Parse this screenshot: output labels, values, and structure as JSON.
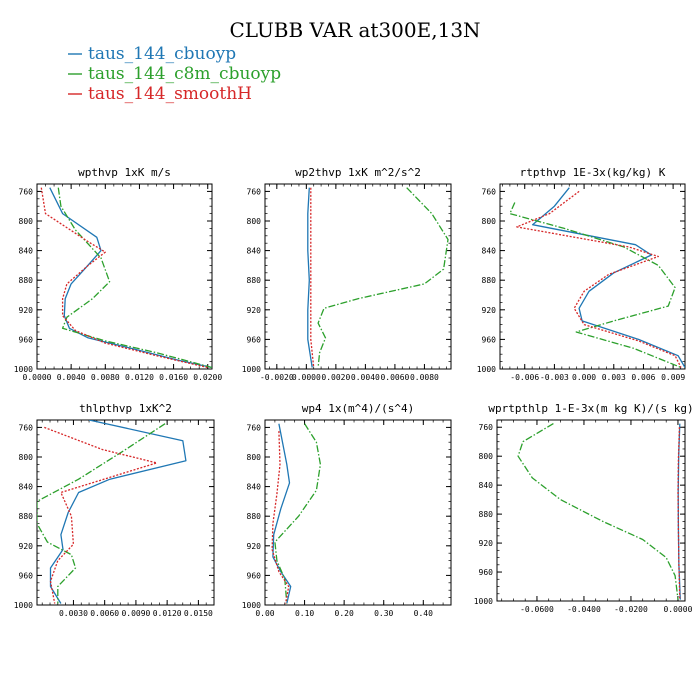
{
  "figure": {
    "title": "CLUBB VAR at300E,13N",
    "legend": [
      {
        "label": "taus_144_cbuoyp",
        "color": "#1f77b4",
        "dash": "solid"
      },
      {
        "label": "taus_144_c8m_cbuoyp",
        "color": "#2ca02c",
        "dash": "dashdot"
      },
      {
        "label": "taus_144_smoothH",
        "color": "#d62728",
        "dash": "dotted"
      }
    ]
  },
  "chart_data": [
    {
      "type": "line",
      "title": "wpthvp  1xK m/s",
      "ylim": [
        1000,
        750
      ],
      "yticks": [
        760,
        800,
        840,
        880,
        920,
        960,
        1000
      ],
      "xlim": [
        0.0,
        0.0205
      ],
      "xticks": [
        0.0,
        0.004,
        0.008,
        0.012,
        0.016,
        0.02
      ],
      "xticklabels": [
        "0.0000",
        "0.0040",
        "0.0080",
        "0.0120",
        "0.0160",
        "0.0200"
      ],
      "series": [
        {
          "name": "taus_144_cbuoyp",
          "points": [
            [
              0.0015,
              755
            ],
            [
              0.003,
              790
            ],
            [
              0.007,
              822
            ],
            [
              0.0075,
              840
            ],
            [
              0.0058,
              862
            ],
            [
              0.004,
              885
            ],
            [
              0.0033,
              905
            ],
            [
              0.0032,
              928
            ],
            [
              0.0038,
              945
            ],
            [
              0.006,
              958
            ],
            [
              0.011,
              972
            ],
            [
              0.0165,
              988
            ],
            [
              0.0205,
              998
            ]
          ]
        },
        {
          "name": "taus_144_c8m_cbuoyp",
          "points": [
            [
              0.0025,
              755
            ],
            [
              0.0028,
              780
            ],
            [
              0.0045,
              812
            ],
            [
              0.0075,
              850
            ],
            [
              0.0085,
              882
            ],
            [
              0.0065,
              905
            ],
            [
              0.0035,
              930
            ],
            [
              0.003,
              945
            ],
            [
              0.008,
              962
            ],
            [
              0.014,
              978
            ],
            [
              0.0205,
              998
            ]
          ]
        },
        {
          "name": "taus_144_smoothH",
          "points": [
            [
              0.0005,
              755
            ],
            [
              0.001,
              790
            ],
            [
              0.006,
              828
            ],
            [
              0.008,
              842
            ],
            [
              0.006,
              860
            ],
            [
              0.0035,
              885
            ],
            [
              0.003,
              905
            ],
            [
              0.003,
              928
            ],
            [
              0.0045,
              948
            ],
            [
              0.008,
              965
            ],
            [
              0.014,
              982
            ],
            [
              0.02,
              998
            ]
          ]
        }
      ]
    },
    {
      "type": "line",
      "title": "wp2thvp  1xK m^2/s^2",
      "ylim": [
        1000,
        750
      ],
      "yticks": [
        760,
        800,
        840,
        880,
        920,
        960,
        1000
      ],
      "xlim": [
        -0.0028,
        0.0098
      ],
      "xticks": [
        -0.002,
        0.0,
        0.002,
        0.004,
        0.006,
        0.008
      ],
      "xticklabels": [
        "-0.0020",
        "0.0000",
        "0.0020",
        "0.0040",
        "0.0060",
        "0.0080"
      ],
      "series": [
        {
          "name": "taus_144_cbuoyp",
          "points": [
            [
              0.0002,
              755
            ],
            [
              0.0001,
              790
            ],
            [
              0.0001,
              840
            ],
            [
              0.0002,
              880
            ],
            [
              0.0001,
              920
            ],
            [
              0.0001,
              960
            ],
            [
              0.0004,
              998
            ]
          ]
        },
        {
          "name": "taus_144_c8m_cbuoyp",
          "points": [
            [
              0.0068,
              755
            ],
            [
              0.0085,
              790
            ],
            [
              0.0096,
              825
            ],
            [
              0.0093,
              865
            ],
            [
              0.008,
              885
            ],
            [
              0.0035,
              905
            ],
            [
              0.0012,
              918
            ],
            [
              0.0008,
              938
            ],
            [
              0.0013,
              958
            ],
            [
              0.0009,
              978
            ],
            [
              0.0008,
              998
            ]
          ]
        },
        {
          "name": "taus_144_smoothH",
          "points": [
            [
              0.0003,
              755
            ],
            [
              0.0003,
              790
            ],
            [
              0.0003,
              840
            ],
            [
              0.0003,
              880
            ],
            [
              0.0003,
              920
            ],
            [
              0.0003,
              960
            ],
            [
              0.0005,
              998
            ]
          ]
        }
      ]
    },
    {
      "type": "line",
      "title": "rtpthvp  1E-3x(kg/kg) K",
      "ylim": [
        1000,
        750
      ],
      "yticks": [
        760,
        800,
        840,
        880,
        920,
        960,
        1000
      ],
      "xlim": [
        -0.0085,
        0.0102
      ],
      "xticks": [
        -0.006,
        -0.003,
        0.0,
        0.003,
        0.006,
        0.009
      ],
      "xticklabels": [
        "-0.006",
        "-0.003",
        "0.000",
        "0.003",
        "0.006",
        "0.009"
      ],
      "series": [
        {
          "name": "taus_144_cbuoyp",
          "points": [
            [
              -0.0015,
              755
            ],
            [
              -0.003,
              780
            ],
            [
              -0.0052,
              805
            ],
            [
              0.0052,
              832
            ],
            [
              0.0068,
              846
            ],
            [
              0.003,
              870
            ],
            [
              0.0005,
              895
            ],
            [
              -0.0005,
              918
            ],
            [
              -0.0002,
              935
            ],
            [
              0.0055,
              960
            ],
            [
              0.0095,
              982
            ],
            [
              0.0102,
              998
            ]
          ]
        },
        {
          "name": "taus_144_c8m_cbuoyp",
          "points": [
            [
              -0.007,
              775
            ],
            [
              -0.0075,
              790
            ],
            [
              -0.002,
              810
            ],
            [
              0.004,
              835
            ],
            [
              0.0075,
              860
            ],
            [
              0.0092,
              890
            ],
            [
              0.0085,
              915
            ],
            [
              0.003,
              935
            ],
            [
              -0.0008,
              950
            ],
            [
              0.005,
              972
            ],
            [
              0.0098,
              998
            ]
          ]
        },
        {
          "name": "taus_144_smoothH",
          "points": [
            [
              -0.0005,
              760
            ],
            [
              -0.0035,
              790
            ],
            [
              -0.0068,
              808
            ],
            [
              0.0045,
              835
            ],
            [
              0.0075,
              848
            ],
            [
              0.0025,
              872
            ],
            [
              0.0,
              895
            ],
            [
              -0.001,
              918
            ],
            [
              0.0,
              940
            ],
            [
              0.0055,
              962
            ],
            [
              0.0092,
              982
            ],
            [
              0.0098,
              998
            ]
          ]
        }
      ]
    },
    {
      "type": "line",
      "title": "thlpthvp  1xK^2",
      "ylim": [
        1000,
        750
      ],
      "yticks": [
        760,
        800,
        840,
        880,
        920,
        960,
        1000
      ],
      "xlim": [
        -0.0005,
        0.0165
      ],
      "xticks": [
        0.003,
        0.006,
        0.009,
        0.012,
        0.015
      ],
      "xticklabels": [
        "0.0030",
        "0.0060",
        "0.0090",
        "0.0120",
        "0.0150"
      ],
      "series": [
        {
          "name": "taus_144_cbuoyp",
          "points": [
            [
              0.0045,
              750
            ],
            [
              0.0135,
              778
            ],
            [
              0.0138,
              805
            ],
            [
              0.0065,
              830
            ],
            [
              0.0035,
              848
            ],
            [
              0.0025,
              875
            ],
            [
              0.0018,
              905
            ],
            [
              0.002,
              925
            ],
            [
              0.0008,
              950
            ],
            [
              0.0008,
              975
            ],
            [
              0.0018,
              998
            ]
          ]
        },
        {
          "name": "taus_144_c8m_cbuoyp",
          "points": [
            [
              0.0118,
              755
            ],
            [
              0.008,
              790
            ],
            [
              0.0035,
              830
            ],
            [
              -0.0005,
              860
            ],
            [
              -0.0005,
              890
            ],
            [
              0.0005,
              915
            ],
            [
              0.0028,
              932
            ],
            [
              0.0032,
              950
            ],
            [
              0.0015,
              975
            ],
            [
              0.0015,
              998
            ]
          ]
        },
        {
          "name": "taus_144_smoothH",
          "points": [
            [
              0.0002,
              760
            ],
            [
              0.0058,
              790
            ],
            [
              0.011,
              808
            ],
            [
              0.0018,
              848
            ],
            [
              0.0028,
              880
            ],
            [
              0.003,
              918
            ],
            [
              0.0015,
              940
            ],
            [
              0.0008,
              968
            ],
            [
              0.0012,
              998
            ]
          ]
        }
      ]
    },
    {
      "type": "line",
      "title": "wp4  1x(m^4)/(s^4)",
      "ylim": [
        1000,
        750
      ],
      "yticks": [
        760,
        800,
        840,
        880,
        920,
        960,
        1000
      ],
      "xlim": [
        0.0,
        0.47
      ],
      "xticks": [
        0.0,
        0.1,
        0.2,
        0.3,
        0.4
      ],
      "xticklabels": [
        "0.00",
        "0.10",
        "0.20",
        "0.30",
        "0.40"
      ],
      "series": [
        {
          "name": "taus_144_cbuoyp",
          "points": [
            [
              0.035,
              755
            ],
            [
              0.055,
              810
            ],
            [
              0.062,
              835
            ],
            [
              0.04,
              870
            ],
            [
              0.022,
              905
            ],
            [
              0.02,
              935
            ],
            [
              0.04,
              955
            ],
            [
              0.065,
              975
            ],
            [
              0.055,
              998
            ]
          ]
        },
        {
          "name": "taus_144_c8m_cbuoyp",
          "points": [
            [
              0.1,
              755
            ],
            [
              0.13,
              780
            ],
            [
              0.14,
              810
            ],
            [
              0.13,
              845
            ],
            [
              0.085,
              880
            ],
            [
              0.025,
              915
            ],
            [
              0.03,
              940
            ],
            [
              0.05,
              965
            ],
            [
              0.055,
              998
            ]
          ]
        },
        {
          "name": "taus_144_smoothH",
          "points": [
            [
              0.035,
              765
            ],
            [
              0.038,
              810
            ],
            [
              0.03,
              850
            ],
            [
              0.02,
              890
            ],
            [
              0.018,
              925
            ],
            [
              0.035,
              955
            ],
            [
              0.06,
              975
            ],
            [
              0.052,
              998
            ]
          ]
        }
      ]
    },
    {
      "type": "line",
      "title": "wprtpthlp  1-E-3x(m kg K)/(s kg)",
      "ylim": [
        1000,
        750
      ],
      "yticks": [
        760,
        800,
        840,
        880,
        920,
        960,
        1000
      ],
      "xlim": [
        -0.077,
        0.003
      ],
      "xticks": [
        -0.06,
        -0.04,
        -0.02,
        0.0
      ],
      "xticklabels": [
        "-0.0600",
        "-0.0400",
        "-0.0200",
        "0.0000"
      ],
      "series": [
        {
          "name": "taus_144_cbuoyp",
          "points": [
            [
              0.0008,
              755
            ],
            [
              0.0003,
              800
            ],
            [
              0.0001,
              850
            ],
            [
              0.0002,
              900
            ],
            [
              0.0004,
              950
            ],
            [
              0.001,
              998
            ]
          ]
        },
        {
          "name": "taus_144_c8m_cbuoyp",
          "points": [
            [
              -0.053,
              755
            ],
            [
              -0.066,
              780
            ],
            [
              -0.068,
              800
            ],
            [
              -0.062,
              830
            ],
            [
              -0.05,
              860
            ],
            [
              -0.032,
              890
            ],
            [
              -0.015,
              915
            ],
            [
              -0.005,
              940
            ],
            [
              -0.0012,
              965
            ],
            [
              0.0,
              998
            ]
          ]
        },
        {
          "name": "taus_144_smoothH",
          "points": [
            [
              0.0006,
              760
            ],
            [
              0.0002,
              805
            ],
            [
              0.0,
              850
            ],
            [
              0.0002,
              900
            ],
            [
              0.0004,
              950
            ],
            [
              0.0008,
              998
            ]
          ]
        }
      ]
    }
  ]
}
